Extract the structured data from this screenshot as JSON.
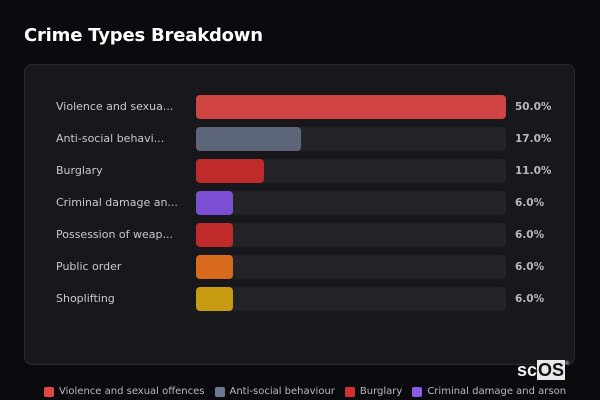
{
  "header": {
    "title": "Crime Types Breakdown"
  },
  "chart_data": {
    "type": "bar",
    "orientation": "horizontal",
    "title": "Crime Types Breakdown",
    "categories": [
      "Violence and sexual offences",
      "Anti-social behaviour",
      "Burglary",
      "Criminal damage and arson",
      "Possession of weapons",
      "Public order",
      "Shoplifting"
    ],
    "display_labels": [
      "Violence and sexua...",
      "Anti-social behavi...",
      "Burglary",
      "Criminal damage an...",
      "Possession of weap...",
      "Public order",
      "Shoplifting"
    ],
    "values": [
      50.0,
      17.0,
      11.0,
      6.0,
      6.0,
      6.0,
      6.0
    ],
    "value_labels": [
      "50.0%",
      "17.0%",
      "11.0%",
      "6.0%",
      "6.0%",
      "6.0%",
      "6.0%"
    ],
    "colors": [
      "#d04444",
      "#5c6678",
      "#bf2a2a",
      "#7b4fd4",
      "#bf2a2a",
      "#d86a1e",
      "#c89a10"
    ],
    "xlim": [
      0,
      50
    ],
    "unit": "%",
    "legend": {
      "position": "bottom",
      "entries": [
        "Violence and sexual offences",
        "Anti-social behaviour",
        "Burglary",
        "Criminal damage and arson"
      ],
      "colors": [
        "#e04848",
        "#6e7890",
        "#d43030",
        "#8a5ae8"
      ]
    },
    "grid": false
  },
  "logo": {
    "prefix": "sc",
    "highlight": "OS",
    "mark": "®"
  }
}
